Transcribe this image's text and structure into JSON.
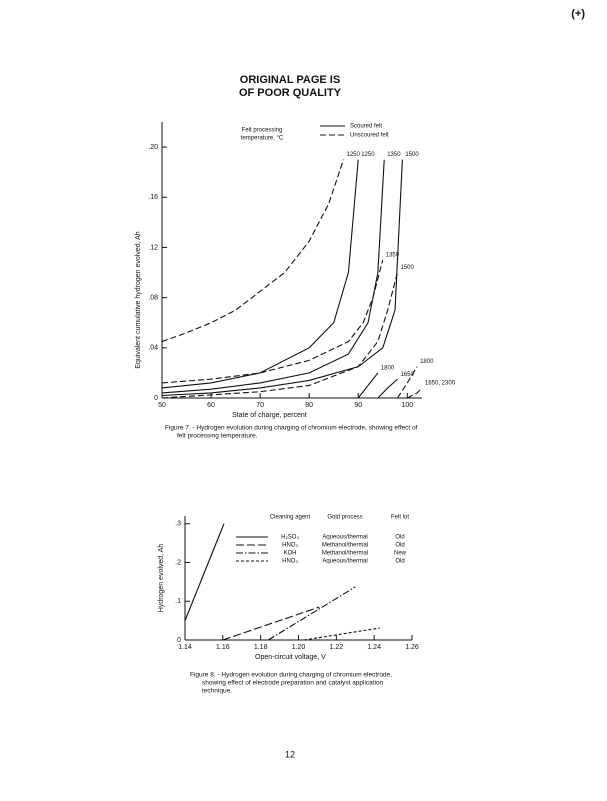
{
  "header": {
    "lines": [
      "ORIGINAL PAGE IS",
      "OF POOR QUALITY"
    ],
    "corner_mark": "(+)"
  },
  "chart_data": [
    {
      "type": "line",
      "title": "Figure 7. - Hydrogen evolution during charging of chromium electrode, showing effect of felt processing temperature.",
      "x_label": "State of charge, percent",
      "y_label": "Equivalent cumulative hydrogen evolved, Ah",
      "annotation": "Felt processing temperature, °C",
      "legend": [
        {
          "name": "Scoured felt",
          "style": "solid"
        },
        {
          "name": "Unscoured felt",
          "style": "dashed"
        }
      ],
      "xlim": [
        50,
        103
      ],
      "xticks": [
        50,
        60,
        70,
        80,
        90,
        100
      ],
      "ylim": [
        0,
        0.22
      ],
      "yticks": [
        0,
        {
          "value": 0.04,
          "label": ".04"
        },
        {
          "value": 0.08,
          "label": ".08"
        },
        {
          "value": 0.12,
          "label": ".12"
        },
        {
          "value": 0.16,
          "label": ".16"
        },
        {
          "value": 0.2,
          "label": ".20"
        }
      ],
      "series": [
        {
          "label": "1250",
          "style": "dashed",
          "x": [
            50,
            55,
            60,
            65,
            70,
            75,
            80,
            84,
            87
          ],
          "values": [
            0.045,
            0.052,
            0.06,
            0.07,
            0.085,
            0.1,
            0.125,
            0.155,
            0.19
          ]
        },
        {
          "label": "1250",
          "style": "solid",
          "x": [
            50,
            60,
            70,
            80,
            85,
            88,
            90
          ],
          "values": [
            0.008,
            0.012,
            0.02,
            0.04,
            0.06,
            0.1,
            0.19
          ]
        },
        {
          "label": "1350",
          "style": "solid",
          "x": [
            50,
            60,
            70,
            80,
            88,
            92,
            94,
            95.3
          ],
          "values": [
            0.004,
            0.007,
            0.012,
            0.02,
            0.035,
            0.06,
            0.1,
            0.19
          ]
        },
        {
          "label": "1350",
          "style": "dashed",
          "x": [
            50,
            60,
            70,
            80,
            88,
            91,
            93,
            95
          ],
          "values": [
            0.012,
            0.015,
            0.02,
            0.03,
            0.045,
            0.06,
            0.08,
            0.11
          ]
        },
        {
          "label": "1500",
          "style": "solid",
          "x": [
            50,
            60,
            70,
            80,
            90,
            95,
            97.5,
            99
          ],
          "values": [
            0.002,
            0.004,
            0.008,
            0.014,
            0.025,
            0.04,
            0.07,
            0.19
          ]
        },
        {
          "label": "1500",
          "style": "dashed",
          "x": [
            50,
            70,
            80,
            90,
            94,
            96,
            98
          ],
          "values": [
            0,
            0.005,
            0.01,
            0.025,
            0.045,
            0.07,
            0.1
          ]
        },
        {
          "label": "1800",
          "style": "solid",
          "x": [
            90,
            92,
            94
          ],
          "values": [
            0,
            0.01,
            0.02
          ]
        },
        {
          "label": "1650",
          "style": "solid",
          "x": [
            94,
            96,
            98
          ],
          "values": [
            0,
            0.008,
            0.015
          ]
        },
        {
          "label": "1800",
          "style": "dashed",
          "x": [
            98,
            100,
            102
          ],
          "values": [
            0,
            0.012,
            0.025
          ]
        },
        {
          "label": "1650, 2300",
          "style": "dashed",
          "x": [
            100,
            102,
            103
          ],
          "values": [
            0,
            0.004,
            0.008
          ]
        }
      ]
    },
    {
      "type": "line",
      "title": "Figure 8. - Hydrogen evolution during charging of chromium electrode, showing effect of electrode preparation and catalyst application technique.",
      "x_label": "Open-circuit voltage, V",
      "y_label": "Hydrogen evolved, Ah",
      "legend_headers": [
        "Cleaning agent",
        "Gold process",
        "Felt lot"
      ],
      "xlim": [
        1.14,
        1.26
      ],
      "xticks": [
        1.14,
        1.16,
        1.18,
        {
          "value": 1.2,
          "label": "1.20"
        },
        1.22,
        1.24,
        1.26
      ],
      "ylim": [
        0,
        0.32
      ],
      "yticks": [
        0,
        {
          "value": 0.1,
          "label": ".1"
        },
        {
          "value": 0.2,
          "label": ".2"
        },
        {
          "value": 0.3,
          "label": ".3"
        }
      ],
      "series": [
        {
          "name": "H₂SO₄",
          "process": "Aqueous/thermal",
          "lot": "Old",
          "style": "solid",
          "x": [
            1.14,
            1.1606
          ],
          "values": [
            0.05,
            0.3
          ]
        },
        {
          "name": "HNO₃",
          "process": "Methanol/thermal",
          "lot": "Old",
          "style": "longdash",
          "x": [
            1.16,
            1.211
          ],
          "values": [
            0,
            0.085
          ]
        },
        {
          "name": "KOH",
          "process": "Methanol/thermal",
          "lot": "New",
          "style": "dashdot",
          "x": [
            1.184,
            1.23
          ],
          "values": [
            0,
            0.137
          ]
        },
        {
          "name": "HNO₃",
          "process": "Aqueous/thermal",
          "lot": "Old",
          "style": "shortdash",
          "x": [
            1.203,
            1.243
          ],
          "values": [
            0,
            0.031
          ]
        }
      ]
    }
  ],
  "page_number": "12"
}
